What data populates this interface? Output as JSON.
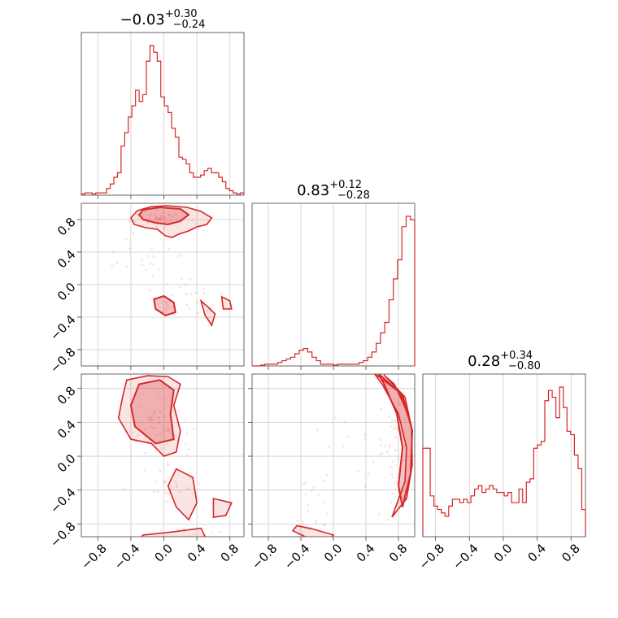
{
  "chart_data": {
    "type": "corner",
    "color": "#d62728",
    "ticks": [
      -0.8,
      -0.4,
      0.0,
      0.4,
      0.8
    ],
    "tick_labels": [
      "−0.8",
      "−0.4",
      "0.0",
      "0.4",
      "0.8"
    ],
    "ranges": [
      [
        -1.0,
        0.97
      ],
      [
        -1.0,
        1.0
      ],
      [
        -0.95,
        0.97
      ]
    ],
    "titles": [
      {
        "median": "−0.03",
        "plus": "+0.30",
        "minus": "−0.24"
      },
      {
        "median": "0.83",
        "plus": "+0.12",
        "minus": "−0.28"
      },
      {
        "median": "0.28",
        "plus": "+0.34",
        "minus": "−0.80"
      }
    ],
    "histograms": [
      {
        "x0": -1.0,
        "x1": 0.97,
        "values": [
          0.5,
          1,
          1,
          0.5,
          1,
          1,
          1,
          3,
          5,
          8,
          10,
          22,
          28,
          35,
          40,
          47,
          42,
          45,
          60,
          67,
          64,
          60,
          44,
          40,
          37,
          30,
          26,
          17,
          16,
          14,
          10,
          8,
          8,
          9,
          11,
          12,
          10,
          10,
          8,
          6,
          3,
          2,
          1,
          0.5,
          1
        ]
      },
      {
        "x0": -1.0,
        "x1": 1.0,
        "values": [
          0,
          0,
          0.5,
          1,
          1,
          1,
          2,
          3,
          4,
          5,
          7,
          9,
          10,
          8,
          5,
          3,
          1,
          1,
          1,
          0.5,
          1,
          1,
          1,
          1,
          1,
          2,
          3,
          5,
          8,
          13,
          19,
          25,
          38,
          50,
          61,
          80,
          86,
          84
        ]
      },
      {
        "x0": -0.95,
        "x1": 0.97,
        "values": [
          26,
          26,
          12,
          9,
          8,
          7,
          6,
          9,
          11,
          11,
          10,
          11,
          10,
          12,
          14,
          15,
          13,
          14,
          15,
          14,
          13,
          13,
          12,
          13,
          10,
          10,
          14,
          10,
          16,
          17,
          26,
          27,
          28,
          40,
          43,
          41,
          35,
          44,
          38,
          31,
          30,
          24,
          20,
          8
        ]
      }
    ],
    "scatters": [
      {
        "xi": 0,
        "yi": 1,
        "regions": [
          [
            -0.05,
            0.82,
            0.28,
            0.1,
            40
          ],
          [
            0.05,
            -0.27,
            0.14,
            0.07,
            8
          ],
          [
            0.55,
            -0.3,
            0.15,
            0.12,
            6
          ],
          [
            -0.3,
            0.3,
            0.4,
            0.3,
            18
          ],
          [
            0.2,
            0.0,
            0.5,
            0.4,
            22
          ]
        ],
        "contours": [
          [
            [
              -0.32,
              0.91
            ],
            [
              -0.15,
              0.96
            ],
            [
              0.05,
              0.97
            ],
            [
              0.28,
              0.95
            ],
            [
              0.45,
              0.9
            ],
            [
              0.58,
              0.82
            ],
            [
              0.52,
              0.74
            ],
            [
              0.4,
              0.71
            ],
            [
              0.3,
              0.66
            ],
            [
              0.18,
              0.62
            ],
            [
              0.1,
              0.58
            ],
            [
              0.02,
              0.6
            ],
            [
              -0.08,
              0.68
            ],
            [
              -0.22,
              0.7
            ],
            [
              -0.36,
              0.74
            ],
            [
              -0.4,
              0.82
            ]
          ],
          [
            [
              0.45,
              -0.2
            ],
            [
              0.56,
              -0.3
            ],
            [
              0.62,
              -0.36
            ],
            [
              0.58,
              -0.5
            ],
            [
              0.5,
              -0.38
            ]
          ],
          [
            [
              0.7,
              -0.15
            ],
            [
              0.8,
              -0.2
            ],
            [
              0.82,
              -0.3
            ],
            [
              0.72,
              -0.3
            ]
          ]
        ],
        "fills": [
          [
            [
              -0.25,
              0.92
            ],
            [
              -0.05,
              0.95
            ],
            [
              0.2,
              0.93
            ],
            [
              0.3,
              0.86
            ],
            [
              0.2,
              0.78
            ],
            [
              0.05,
              0.74
            ],
            [
              -0.1,
              0.76
            ],
            [
              -0.25,
              0.8
            ],
            [
              -0.3,
              0.86
            ]
          ],
          [
            [
              -0.12,
              -0.18
            ],
            [
              0.0,
              -0.14
            ],
            [
              0.12,
              -0.22
            ],
            [
              0.14,
              -0.34
            ],
            [
              0.02,
              -0.38
            ],
            [
              -0.1,
              -0.3
            ]
          ]
        ]
      },
      {
        "xi": 0,
        "yi": 2,
        "regions": [
          [
            -0.05,
            0.45,
            0.3,
            0.3,
            40
          ],
          [
            0.1,
            -0.4,
            0.3,
            0.35,
            20
          ],
          [
            0.3,
            -0.9,
            0.4,
            0.08,
            10
          ],
          [
            0.0,
            0.0,
            0.5,
            0.5,
            20
          ]
        ],
        "contours": [
          [
            [
              -0.45,
              0.9
            ],
            [
              -0.2,
              0.95
            ],
            [
              0.05,
              0.94
            ],
            [
              0.2,
              0.85
            ],
            [
              0.12,
              0.6
            ],
            [
              0.2,
              0.3
            ],
            [
              0.15,
              0.05
            ],
            [
              0.0,
              0.0
            ],
            [
              -0.15,
              0.15
            ],
            [
              -0.4,
              0.2
            ],
            [
              -0.55,
              0.45
            ],
            [
              -0.5,
              0.7
            ]
          ],
          [
            [
              0.15,
              -0.15
            ],
            [
              0.35,
              -0.25
            ],
            [
              0.4,
              -0.55
            ],
            [
              0.3,
              -0.75
            ],
            [
              0.15,
              -0.6
            ],
            [
              0.05,
              -0.35
            ]
          ],
          [
            [
              -0.25,
              -0.93
            ],
            [
              0.05,
              -0.9
            ],
            [
              0.45,
              -0.85
            ],
            [
              0.5,
              -0.95
            ],
            [
              0.0,
              -1.0
            ],
            [
              -0.3,
              -0.98
            ]
          ],
          [
            [
              0.6,
              -0.5
            ],
            [
              0.82,
              -0.55
            ],
            [
              0.75,
              -0.7
            ],
            [
              0.6,
              -0.72
            ]
          ]
        ],
        "fills": [
          [
            [
              -0.3,
              0.85
            ],
            [
              -0.05,
              0.9
            ],
            [
              0.12,
              0.78
            ],
            [
              0.08,
              0.5
            ],
            [
              0.12,
              0.2
            ],
            [
              -0.1,
              0.15
            ],
            [
              -0.35,
              0.35
            ],
            [
              -0.4,
              0.6
            ]
          ]
        ]
      },
      {
        "xi": 1,
        "yi": 2,
        "regions": [
          [
            0.75,
            0.1,
            0.2,
            0.55,
            45
          ],
          [
            -0.2,
            -0.8,
            0.2,
            0.15,
            12
          ],
          [
            -0.3,
            -0.4,
            0.2,
            0.2,
            8
          ],
          [
            0.2,
            0.0,
            0.5,
            0.6,
            15
          ]
        ],
        "contours": [
          [
            [
              0.5,
              0.98
            ],
            [
              0.82,
              0.75
            ],
            [
              0.96,
              0.35
            ],
            [
              0.97,
              -0.1
            ],
            [
              0.9,
              -0.5
            ],
            [
              0.72,
              -0.72
            ],
            [
              0.88,
              -0.3
            ],
            [
              0.9,
              0.1
            ],
            [
              0.8,
              0.5
            ],
            [
              0.6,
              0.85
            ]
          ],
          [
            [
              0.62,
              0.96
            ],
            [
              0.88,
              0.7
            ],
            [
              0.97,
              0.3
            ],
            [
              0.92,
              0.5
            ],
            [
              0.75,
              0.85
            ]
          ],
          [
            [
              -0.45,
              -0.82
            ],
            [
              -0.25,
              -0.86
            ],
            [
              0.0,
              -0.93
            ],
            [
              -0.05,
              -0.99
            ],
            [
              -0.35,
              -0.95
            ],
            [
              -0.5,
              -0.88
            ]
          ]
        ],
        "fills": [
          [
            [
              0.55,
              0.98
            ],
            [
              0.85,
              0.72
            ],
            [
              0.97,
              0.3
            ],
            [
              0.95,
              -0.2
            ],
            [
              0.85,
              -0.6
            ],
            [
              0.8,
              -0.35
            ],
            [
              0.85,
              0.1
            ],
            [
              0.78,
              0.5
            ],
            [
              0.62,
              0.86
            ]
          ]
        ]
      }
    ]
  }
}
